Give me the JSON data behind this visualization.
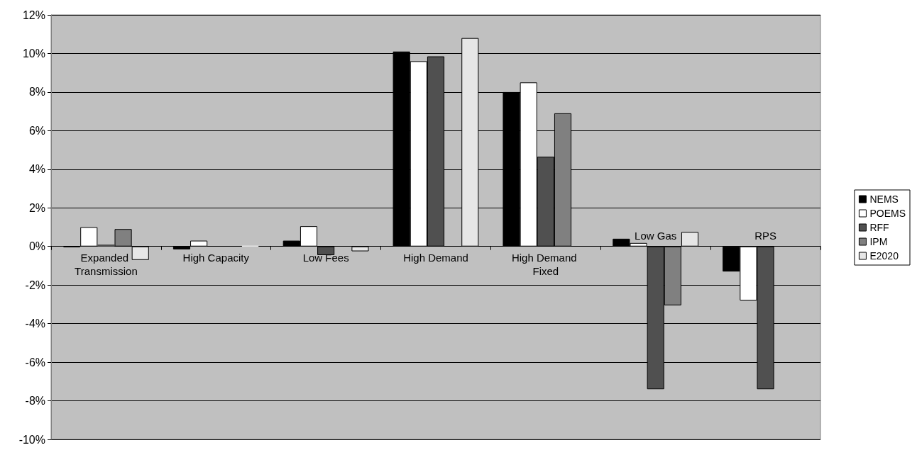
{
  "chart_data": {
    "type": "bar",
    "categories": [
      "Expanded Transmission",
      "High Capacity",
      "Low Fees",
      "High Demand",
      "High Demand Fixed",
      "Low Gas",
      "RPS"
    ],
    "series": [
      {
        "name": "NEMS",
        "color": "#000000",
        "values": [
          -0.03,
          -0.15,
          0.3,
          10.1,
          8.0,
          0.4,
          -1.3
        ]
      },
      {
        "name": "POEMS",
        "color": "#ffffff",
        "values": [
          1.0,
          0.3,
          1.05,
          9.6,
          8.5,
          0.18,
          -2.8
        ]
      },
      {
        "name": "RFF",
        "color": "#505050",
        "values": [
          0.1,
          null,
          -0.45,
          9.85,
          4.65,
          -7.4,
          -7.4
        ]
      },
      {
        "name": "IPM",
        "color": "#808080",
        "values": [
          0.9,
          null,
          null,
          null,
          6.9,
          -3.05,
          null
        ]
      },
      {
        "name": "E2020",
        "color": "#e6e6e6",
        "values": [
          -0.7,
          0.03,
          -0.25,
          10.8,
          null,
          0.75,
          null
        ]
      }
    ],
    "ylim": [
      -10,
      12
    ],
    "yticks": [
      {
        "value": -10,
        "label": "-10%"
      },
      {
        "value": -8,
        "label": "-8%"
      },
      {
        "value": -6,
        "label": "-6%"
      },
      {
        "value": -4,
        "label": "-4%"
      },
      {
        "value": -2,
        "label": "-2%"
      },
      {
        "value": 0,
        "label": "0%"
      },
      {
        "value": 2,
        "label": "2%"
      },
      {
        "value": 4,
        "label": "4%"
      },
      {
        "value": 6,
        "label": "6%"
      },
      {
        "value": 8,
        "label": "8%"
      },
      {
        "value": 10,
        "label": "10%"
      },
      {
        "value": 12,
        "label": "12%"
      }
    ],
    "grid": "y",
    "legend": "right"
  }
}
